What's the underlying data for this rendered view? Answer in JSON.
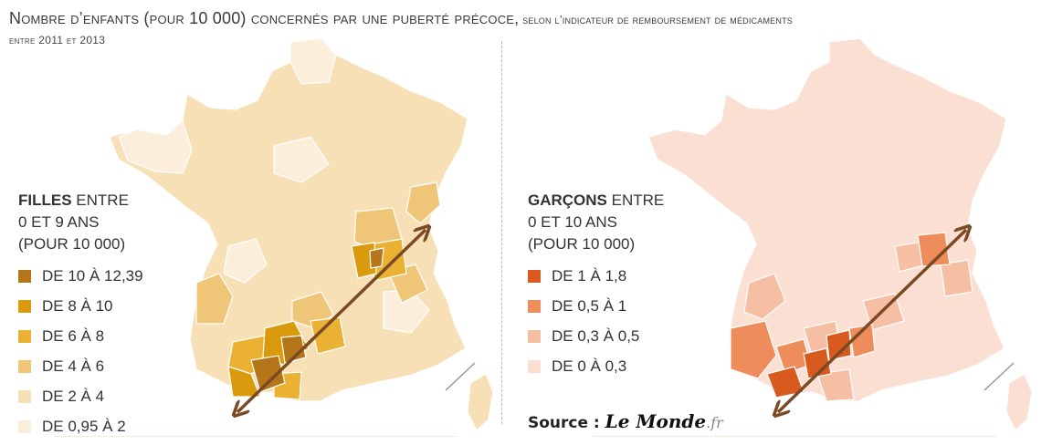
{
  "title": {
    "main": "Nombre d’enfants (pour 10 000) concernés par une puberté précoce,",
    "sub": " selon l’indicateur de remboursement de médicaments"
  },
  "subtitle": "entre 2011 et 2013",
  "maps": [
    {
      "id": "filles",
      "legend": {
        "head_bold": "FILLES",
        "head_rest": " ENTRE",
        "head_line2": "0 ET 9 ANS",
        "head_line3": "(POUR 10 000)",
        "items": [
          {
            "label": "DE 10 À 12,39",
            "color": "#b5761a"
          },
          {
            "label": "DE 8 À 10",
            "color": "#d99a0e"
          },
          {
            "label": "DE 6 À 8",
            "color": "#eab132"
          },
          {
            "label": "DE 4 À 6",
            "color": "#efc677"
          },
          {
            "label": "DE 2 À 4",
            "color": "#f7e0b5"
          },
          {
            "label": "DE 0,95 À 2",
            "color": "#fbefdc"
          }
        ]
      }
    },
    {
      "id": "garcons",
      "legend": {
        "head_bold": "GARÇONS",
        "head_rest": " ENTRE",
        "head_line2": "0 ET 10 ANS",
        "head_line3": "(POUR 10 000)",
        "items": [
          {
            "label": "DE 1 À 1,8",
            "color": "#d85a1e"
          },
          {
            "label": "DE 0,5  À 1",
            "color": "#ee8c5c"
          },
          {
            "label": "DE 0,3  À 0,5",
            "color": "#f6bfa3"
          },
          {
            "label": "DE 0 À 0,3",
            "color": "#fbdfd2"
          }
        ]
      }
    }
  ],
  "source": {
    "label": "Source : ",
    "brand": "Le Monde",
    "tld": ".fr"
  },
  "colors": {
    "arrow": "#7a4a24",
    "border": "#ffffff"
  }
}
